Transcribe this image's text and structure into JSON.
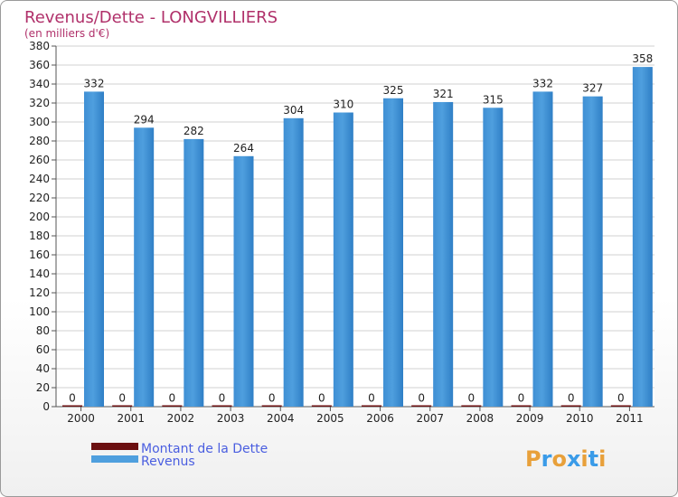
{
  "chart_data": {
    "type": "bar",
    "title": "Revenus/Dette - LONGVILLIERS",
    "subtitle": "(en milliers d'€)",
    "categories": [
      "2000",
      "2001",
      "2002",
      "2003",
      "2004",
      "2005",
      "2006",
      "2007",
      "2008",
      "2009",
      "2010",
      "2011"
    ],
    "series": [
      {
        "name": "Montant de la Dette",
        "color": "#6b0f10",
        "values": [
          0,
          0,
          0,
          0,
          0,
          0,
          0,
          0,
          0,
          0,
          0,
          0
        ]
      },
      {
        "name": "Revenus",
        "color": "#4f9fde",
        "values": [
          332,
          294,
          282,
          264,
          304,
          310,
          325,
          321,
          315,
          332,
          327,
          358
        ]
      }
    ],
    "ylim": [
      0,
      380
    ],
    "ytick_step": 20,
    "grid": true,
    "legend_position": "bottom-left"
  },
  "logo": {
    "text": "Proxiti",
    "colors": [
      "#e8a03a",
      "#3a9be8",
      "#e8a03a",
      "#3a9be8",
      "#e8a03a",
      "#3a9be8",
      "#e8a03a"
    ]
  }
}
